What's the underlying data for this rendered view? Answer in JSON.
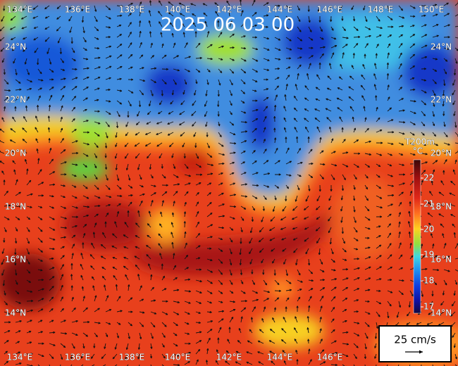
{
  "title": "2025 06 03 00",
  "lon_labels": [
    "134°E",
    "136°E",
    "138°E",
    "140°E",
    "142°E",
    "144°E",
    "146°E",
    "148°E",
    "150°E"
  ],
  "lat_labels": [
    "24°N",
    "22°N",
    "20°N",
    "18°N",
    "16°N",
    "14°N"
  ],
  "colorbar": {
    "title": "T200m",
    "unit": "°C",
    "ticks": [
      22,
      21,
      20,
      19,
      18,
      17
    ]
  },
  "legend": {
    "label": "25 cm/s"
  }
}
